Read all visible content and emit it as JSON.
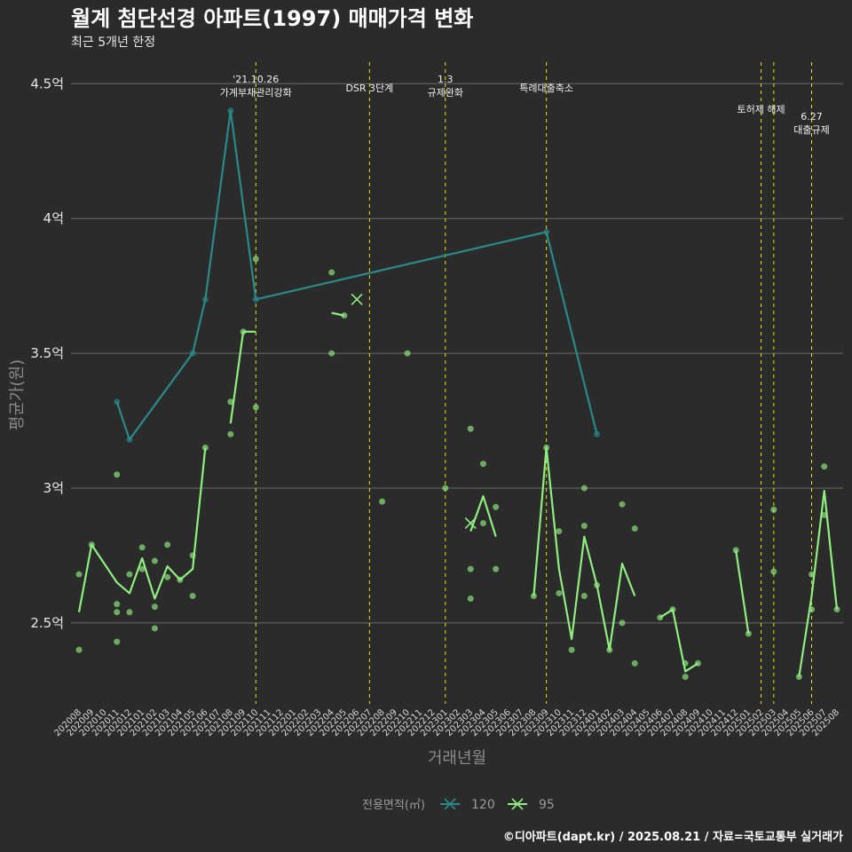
{
  "chart_data": {
    "type": "line",
    "title": "월계 첨단선경 아파트(1997) 매매가격 변화",
    "subtitle": "최근 5개년 한정",
    "xlabel": "거래년월",
    "ylabel": "평균가(원)",
    "caption": "©디아파트(dapt.kr) / 2025.08.21 / 자료=국토교통부 실거래가",
    "x_categories": [
      "202008",
      "202009",
      "202010",
      "202011",
      "202012",
      "202101",
      "202102",
      "202103",
      "202104",
      "202105",
      "202106",
      "202107",
      "202108",
      "202109",
      "202110",
      "202111",
      "202112",
      "202201",
      "202202",
      "202203",
      "202204",
      "202205",
      "202206",
      "202207",
      "202208",
      "202209",
      "202210",
      "202211",
      "202212",
      "202301",
      "202302",
      "202303",
      "202304",
      "202305",
      "202306",
      "202307",
      "202308",
      "202309",
      "202310",
      "202311",
      "202312",
      "202401",
      "202402",
      "202403",
      "202404",
      "202405",
      "202406",
      "202407",
      "202408",
      "202409",
      "202410",
      "202411",
      "202412",
      "202501",
      "202502",
      "202503",
      "202504",
      "202505",
      "202506",
      "202507",
      "202508"
    ],
    "y_ticks": [
      {
        "value": 2.5,
        "label": "2.5억"
      },
      {
        "value": 3.0,
        "label": "3억"
      },
      {
        "value": 3.5,
        "label": "3.5억"
      },
      {
        "value": 4.0,
        "label": "4억"
      },
      {
        "value": 4.5,
        "label": "4.5억"
      }
    ],
    "ylim": [
      2.2,
      4.58
    ],
    "grid": true,
    "legend": {
      "title": "전용면적(㎡)",
      "position": "bottom"
    },
    "series": [
      {
        "name": "120",
        "color": "#2a8a8a",
        "line": [
          [
            "202011",
            3.32
          ],
          [
            "202012",
            3.18
          ],
          [
            "202105",
            3.5
          ],
          [
            "202106",
            3.7
          ],
          [
            "202108",
            4.4
          ],
          [
            "202110",
            3.7
          ],
          [
            "202309",
            3.95
          ],
          [
            "202401",
            3.2
          ]
        ],
        "points": [
          [
            "202011",
            3.32
          ],
          [
            "202012",
            3.18
          ],
          [
            "202105",
            3.5
          ],
          [
            "202106",
            3.7
          ],
          [
            "202108",
            4.4
          ],
          [
            "202110",
            3.7
          ],
          [
            "202309",
            3.95
          ],
          [
            "202401",
            3.2
          ]
        ],
        "markers": []
      },
      {
        "name": "95",
        "color": "#90ee80",
        "line": [
          [
            "202008",
            2.54
          ],
          [
            "202009",
            2.79
          ],
          [
            "202011",
            2.65
          ],
          [
            "202012",
            2.61
          ],
          [
            "202101",
            2.74
          ],
          [
            "202102",
            2.59
          ],
          [
            "202103",
            2.71
          ],
          [
            "202104",
            2.66
          ],
          [
            "202105",
            2.7
          ],
          [
            "202106",
            3.15
          ],
          null,
          [
            "202108",
            3.24
          ],
          [
            "202109",
            3.58
          ],
          [
            "202110",
            3.58
          ],
          null,
          [
            "202204",
            3.65
          ],
          [
            "202205",
            3.64
          ],
          null,
          [
            "202303",
            2.84
          ],
          [
            "202304",
            2.97
          ],
          [
            "202305",
            2.82
          ],
          null,
          [
            "202308",
            2.6
          ],
          [
            "202309",
            3.15
          ],
          [
            "202310",
            2.7
          ],
          [
            "202311",
            2.44
          ],
          [
            "202312",
            2.82
          ],
          [
            "202401",
            2.64
          ],
          [
            "202402",
            2.4
          ],
          [
            "202403",
            2.72
          ],
          [
            "202404",
            2.6
          ],
          null,
          [
            "202406",
            2.52
          ],
          [
            "202407",
            2.55
          ],
          [
            "202408",
            2.32
          ],
          [
            "202409",
            2.35
          ],
          null,
          [
            "202412",
            2.77
          ],
          [
            "202501",
            2.46
          ],
          null,
          [
            "202505",
            2.3
          ],
          [
            "202506",
            2.6
          ],
          [
            "202507",
            2.99
          ],
          [
            "202508",
            2.55
          ]
        ],
        "points": [
          [
            "202008",
            2.68
          ],
          [
            "202008",
            2.4
          ],
          [
            "202009",
            2.79
          ],
          [
            "202011",
            3.05
          ],
          [
            "202011",
            2.57
          ],
          [
            "202011",
            2.54
          ],
          [
            "202011",
            2.43
          ],
          [
            "202012",
            2.68
          ],
          [
            "202012",
            2.54
          ],
          [
            "202101",
            2.78
          ],
          [
            "202101",
            2.7
          ],
          [
            "202102",
            2.73
          ],
          [
            "202102",
            2.56
          ],
          [
            "202102",
            2.48
          ],
          [
            "202103",
            2.79
          ],
          [
            "202103",
            2.67
          ],
          [
            "202104",
            2.66
          ],
          [
            "202105",
            2.75
          ],
          [
            "202105",
            2.6
          ],
          [
            "202106",
            3.15
          ],
          [
            "202108",
            3.32
          ],
          [
            "202108",
            3.2
          ],
          [
            "202109",
            3.58
          ],
          [
            "202110",
            3.85
          ],
          [
            "202110",
            3.3
          ],
          [
            "202204",
            3.8
          ],
          [
            "202204",
            3.5
          ],
          [
            "202205",
            3.64
          ],
          [
            "202208",
            2.95
          ],
          [
            "202210",
            3.5
          ],
          [
            "202301",
            3.0
          ],
          [
            "202303",
            3.22
          ],
          [
            "202303",
            2.7
          ],
          [
            "202303",
            2.59
          ],
          [
            "202304",
            3.09
          ],
          [
            "202304",
            2.87
          ],
          [
            "202305",
            2.93
          ],
          [
            "202305",
            2.7
          ],
          [
            "202308",
            2.6
          ],
          [
            "202309",
            3.15
          ],
          [
            "202310",
            2.84
          ],
          [
            "202310",
            2.61
          ],
          [
            "202311",
            2.4
          ],
          [
            "202312",
            3.0
          ],
          [
            "202312",
            2.86
          ],
          [
            "202312",
            2.6
          ],
          [
            "202401",
            2.64
          ],
          [
            "202402",
            2.4
          ],
          [
            "202403",
            2.94
          ],
          [
            "202403",
            2.5
          ],
          [
            "202404",
            2.85
          ],
          [
            "202404",
            2.35
          ],
          [
            "202406",
            2.52
          ],
          [
            "202407",
            2.55
          ],
          [
            "202408",
            2.35
          ],
          [
            "202408",
            2.3
          ],
          [
            "202409",
            2.35
          ],
          [
            "202412",
            2.77
          ],
          [
            "202501",
            2.46
          ],
          [
            "202503",
            2.92
          ],
          [
            "202503",
            2.69
          ],
          [
            "202505",
            2.3
          ],
          [
            "202506",
            2.68
          ],
          [
            "202506",
            2.55
          ],
          [
            "202507",
            3.08
          ],
          [
            "202507",
            2.9
          ],
          [
            "202508",
            2.55
          ]
        ],
        "markers": [
          [
            "202206",
            3.7
          ],
          [
            "202303",
            2.87
          ]
        ]
      }
    ],
    "vlines": [
      {
        "x": "202110",
        "lines": [
          "'21.10.26",
          "가계부채관리강화"
        ],
        "level": 0
      },
      {
        "x": "202207",
        "lines": [
          "DSR 3단계"
        ],
        "level": 2
      },
      {
        "x": "202301",
        "lines": [
          "1.3",
          "규제완화"
        ],
        "level": 0
      },
      {
        "x": "202309",
        "lines": [
          "특례대출축소"
        ],
        "level": 2
      },
      {
        "x": "202502",
        "lines": [
          "토허제 해제"
        ],
        "level": 1
      },
      {
        "x": "202503",
        "lines": [],
        "level": 1
      },
      {
        "x": "202506",
        "lines": [
          "6.27",
          "대출규제"
        ],
        "level": 3
      }
    ],
    "vline_color": "#e6e600"
  }
}
